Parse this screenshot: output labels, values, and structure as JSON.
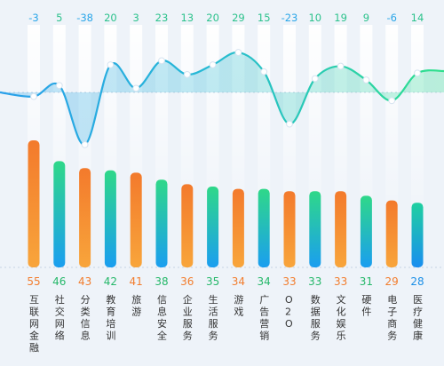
{
  "chart_data": [
    {
      "type": "area",
      "categories": [
        "互联网金融",
        "社交网络",
        "分类信息",
        "教育培训",
        "旅游",
        "信息安全",
        "企业服务",
        "生活服务",
        "游戏",
        "广告营销",
        "O2O",
        "数据服务",
        "文化娱乐",
        "硬件",
        "电子商务",
        "医疗健康"
      ],
      "values": [
        -3,
        5,
        -38,
        20,
        3,
        23,
        13,
        20,
        29,
        15,
        -23,
        10,
        19,
        9,
        -6,
        14
      ]
    },
    {
      "type": "bar",
      "categories": [
        "互联网金融",
        "社交网络",
        "分类信息",
        "教育培训",
        "旅游",
        "信息安全",
        "企业服务",
        "生活服务",
        "游戏",
        "广告营销",
        "O2O",
        "数据服务",
        "文化娱乐",
        "硬件",
        "电子商务",
        "医疗健康"
      ],
      "values": [
        55,
        46,
        43,
        42,
        41,
        38,
        36,
        35,
        34,
        34,
        33,
        33,
        33,
        31,
        29,
        28
      ],
      "colors": [
        "orange",
        "green",
        "orange",
        "green",
        "orange",
        "green",
        "orange",
        "green",
        "orange",
        "green",
        "orange",
        "green",
        "orange",
        "green",
        "orange",
        "blue"
      ]
    }
  ],
  "colors": {
    "background": "#eef3f9",
    "orange_top": "#f37a2c",
    "orange_bottom": "#f7a13c",
    "green_top": "#2fd889",
    "green_bottom": "#1aa0f0",
    "blue_top": "#19c8a8",
    "blue_bottom": "#1a8ef0",
    "label_orange": "#f27d2e",
    "label_green": "#26b86a",
    "label_blue": "#1b8fe6",
    "top_positive": "#2cc28c",
    "top_negative": "#2aa6e8",
    "wave_blue": "#2aa0ea",
    "wave_green": "#28d592"
  }
}
